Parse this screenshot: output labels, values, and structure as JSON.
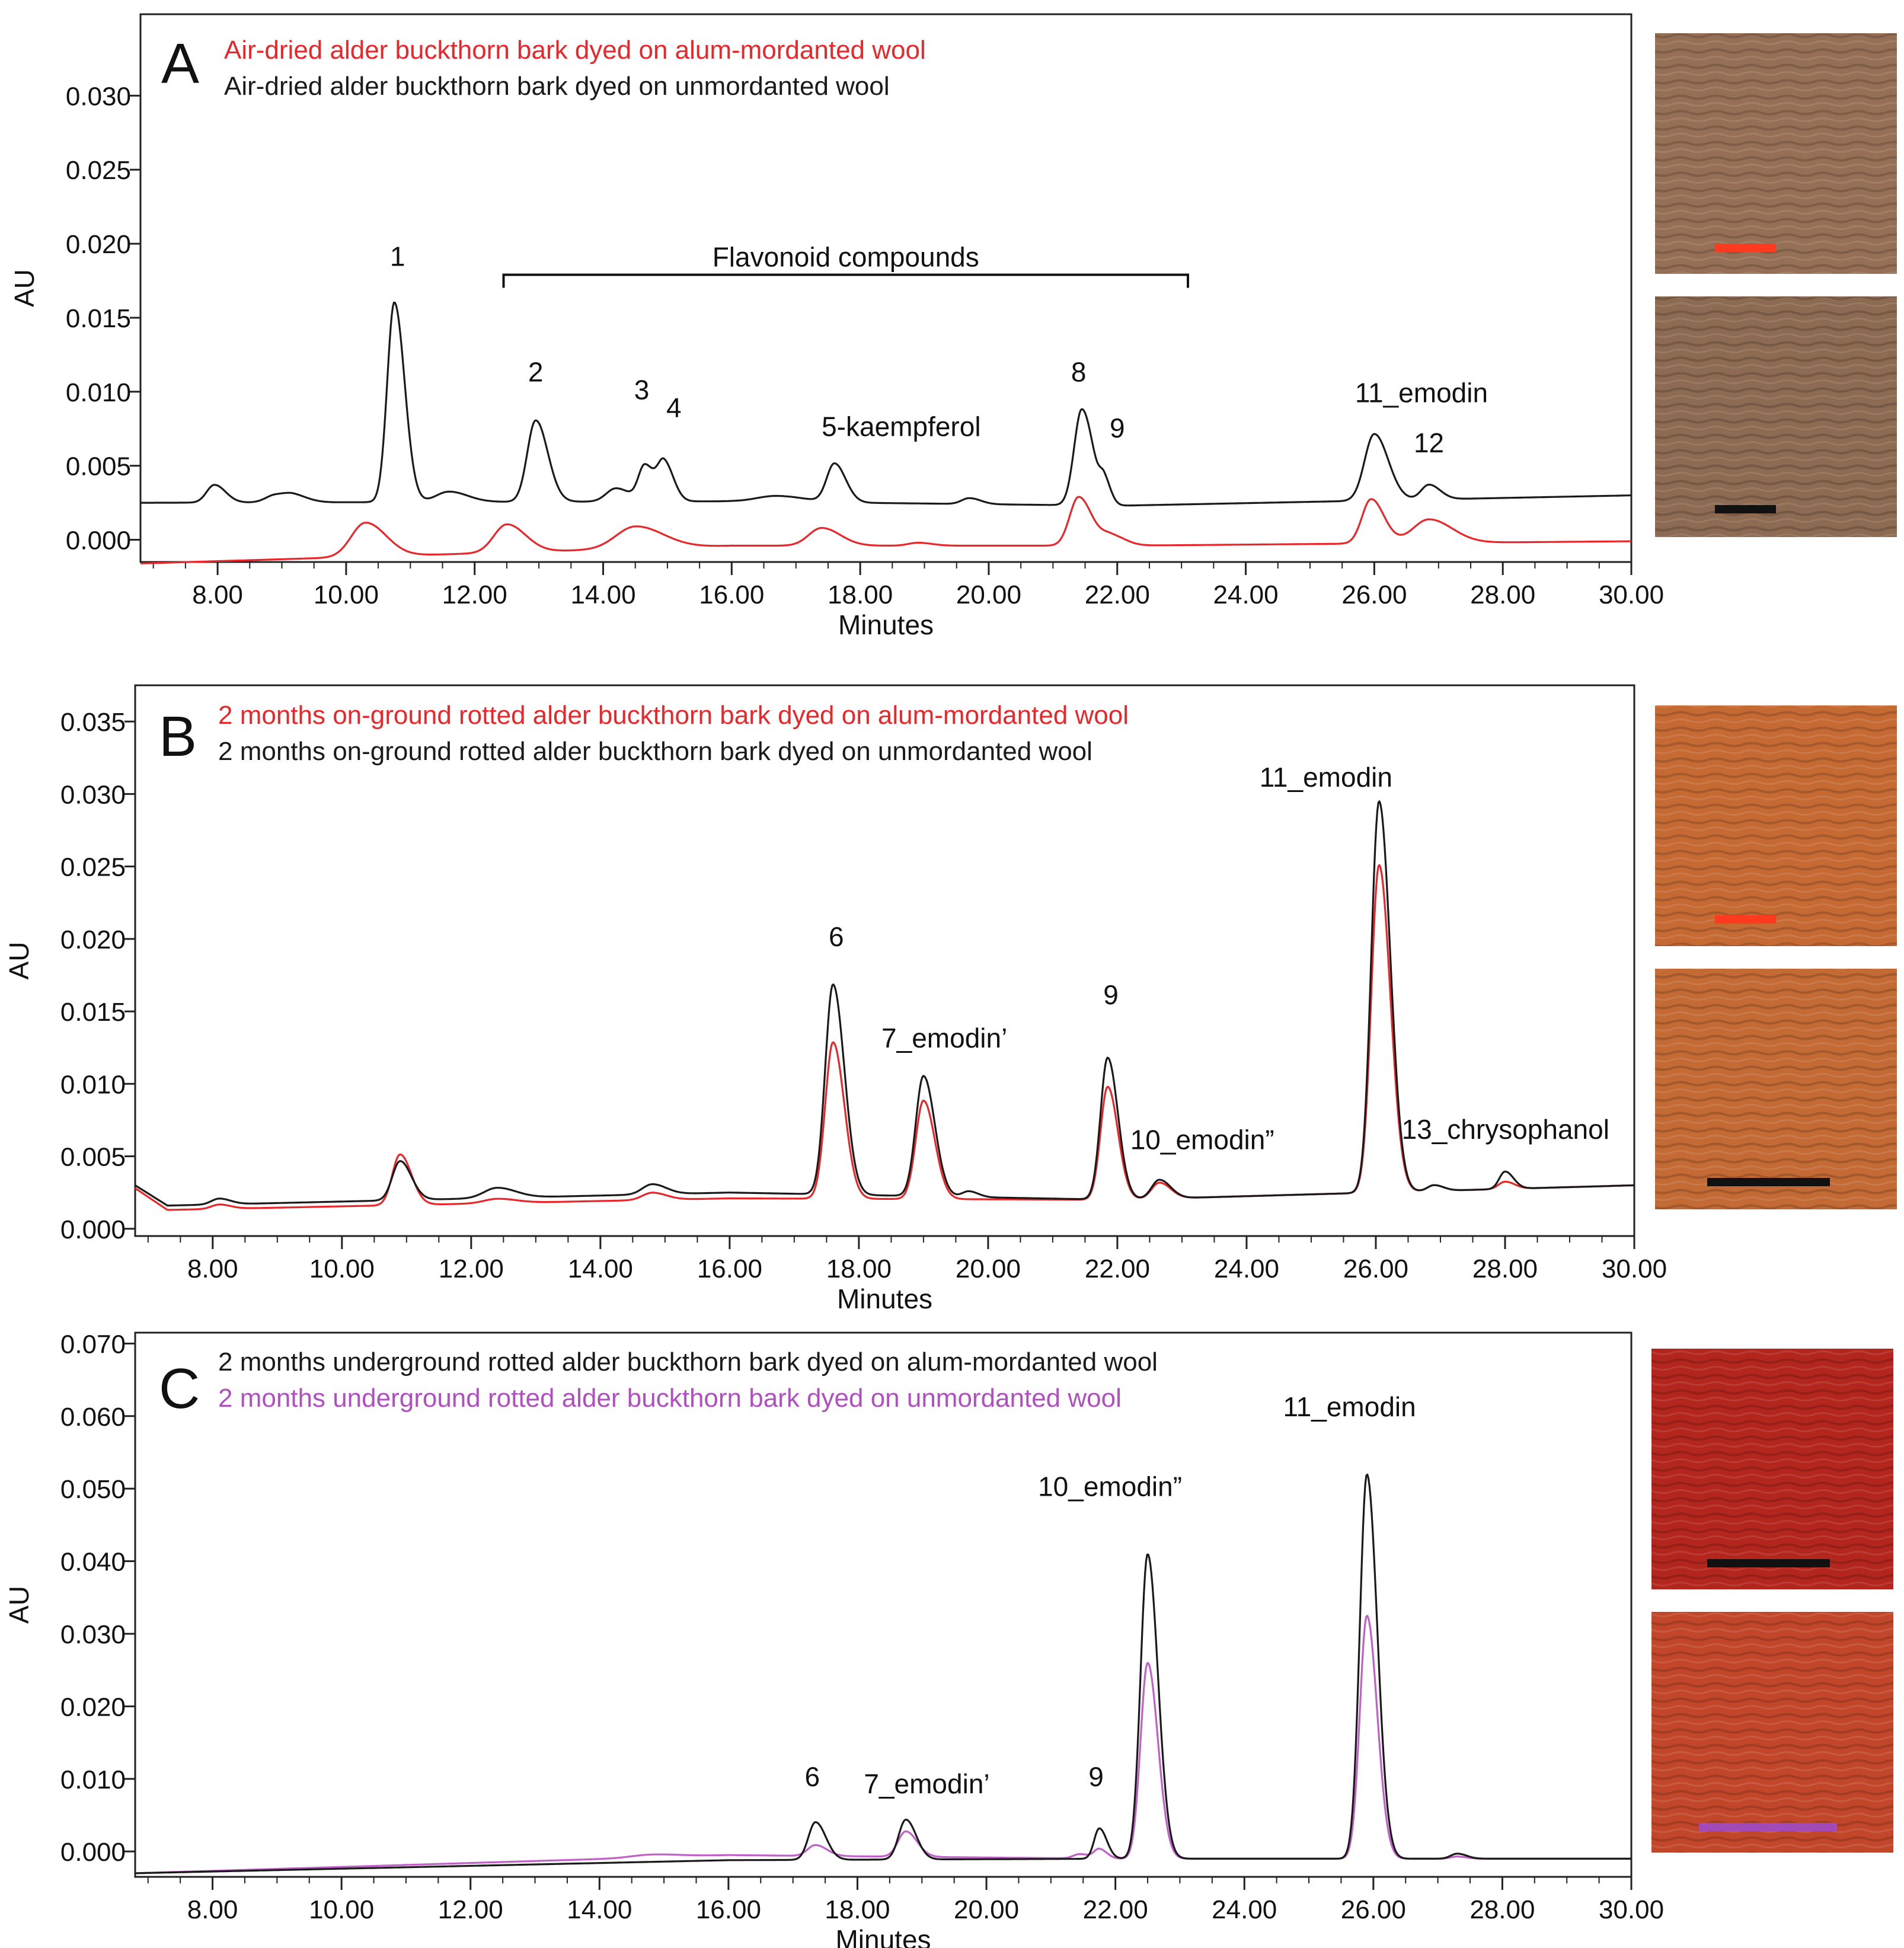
{
  "chart_data": [
    {
      "type": "line",
      "panel": "A",
      "xlabel": "Minutes",
      "ylabel": "AU",
      "xlim": [
        6.8,
        30.0
      ],
      "ylim": [
        -0.0015,
        0.0355
      ],
      "x_ticks": [
        "8.00",
        "10.00",
        "12.00",
        "14.00",
        "16.00",
        "18.00",
        "20.00",
        "22.00",
        "24.00",
        "26.00",
        "28.00",
        "30.00"
      ],
      "y_ticks": [
        "0.000",
        "0.005",
        "0.010",
        "0.015",
        "0.020",
        "0.025",
        "0.030"
      ],
      "legend": [
        {
          "text": "Air-dried alder buckthorn bark dyed on alum-mordanted wool",
          "color": "#e8272a"
        },
        {
          "text": "Air-dried alder buckthorn bark dyed on unmordanted wool",
          "color": "#1a1a1a"
        }
      ],
      "series": [
        {
          "name": "Air-dried alder buckthorn bark dyed on unmordanted wool",
          "color": "#1a1a1a",
          "baseline": [
            [
              6.8,
              0.0025
            ],
            [
              16,
              0.0026
            ],
            [
              22,
              0.0023
            ],
            [
              30,
              0.003
            ]
          ],
          "peaks": [
            [
              7.95,
              0.0012,
              0.12
            ],
            [
              8.9,
              0.0005,
              0.15
            ],
            [
              9.2,
              0.0004,
              0.15
            ],
            [
              10.75,
              0.0135,
              0.11
            ],
            [
              11.6,
              0.0007,
              0.2
            ],
            [
              12.95,
              0.0055,
              0.13
            ],
            [
              14.2,
              0.0009,
              0.15
            ],
            [
              14.65,
              0.0024,
              0.1
            ],
            [
              14.95,
              0.0026,
              0.1
            ],
            [
              16.7,
              0.0004,
              0.3
            ],
            [
              17.6,
              0.0026,
              0.12
            ],
            [
              19.7,
              0.0004,
              0.12
            ],
            [
              21.45,
              0.0065,
              0.12
            ],
            [
              21.8,
              0.0014,
              0.07
            ],
            [
              26.0,
              0.0045,
              0.15
            ],
            [
              26.85,
              0.001,
              0.12
            ]
          ]
        },
        {
          "name": "Air-dried alder buckthorn bark dyed on alum-mordanted wool",
          "color": "#e8272a",
          "baseline": [
            [
              6.8,
              -0.0016
            ],
            [
              16,
              -0.0004
            ],
            [
              22,
              -0.0004
            ],
            [
              30,
              -0.0001
            ]
          ],
          "peaks": [
            [
              10.3,
              0.0023,
              0.22
            ],
            [
              12.5,
              0.0019,
              0.2
            ],
            [
              14.5,
              0.0015,
              0.3
            ],
            [
              17.4,
              0.0012,
              0.2
            ],
            [
              18.9,
              0.0002,
              0.15
            ],
            [
              21.4,
              0.0033,
              0.14
            ],
            [
              21.9,
              0.0007,
              0.15
            ],
            [
              25.95,
              0.003,
              0.14
            ],
            [
              26.85,
              0.0016,
              0.25
            ]
          ]
        }
      ],
      "annotations": [
        {
          "text": "1",
          "x": 10.8,
          "y": 0.0185
        },
        {
          "text": "2",
          "x": 12.95,
          "y": 0.0107
        },
        {
          "text": "3",
          "x": 14.6,
          "y": 0.0095
        },
        {
          "text": "4",
          "x": 15.1,
          "y": 0.0083
        },
        {
          "text": "5-kaempferol",
          "x": 17.4,
          "y": 0.007,
          "anchor": "start"
        },
        {
          "text": "8",
          "x": 21.4,
          "y": 0.0107
        },
        {
          "text": "9",
          "x": 22.0,
          "y": 0.0069
        },
        {
          "text": "11_emodin",
          "x": 25.7,
          "y": 0.0093,
          "anchor": "start"
        },
        {
          "text": "12",
          "x": 26.85,
          "y": 0.0059
        }
      ],
      "bracket": {
        "text": "Flavonoid compounds",
        "x_start": 12.45,
        "x_end": 23.1,
        "y": 0.0179
      }
    },
    {
      "type": "line",
      "panel": "B",
      "xlabel": "Minutes",
      "ylabel": "AU",
      "xlim": [
        6.8,
        30.0
      ],
      "ylim": [
        -0.0005,
        0.0375
      ],
      "x_ticks": [
        "8.00",
        "10.00",
        "12.00",
        "14.00",
        "16.00",
        "18.00",
        "20.00",
        "22.00",
        "24.00",
        "26.00",
        "28.00",
        "30.00"
      ],
      "y_ticks": [
        "0.000",
        "0.005",
        "0.010",
        "0.015",
        "0.020",
        "0.025",
        "0.030",
        "0.035"
      ],
      "legend": [
        {
          "text": "2 months on-ground rotted alder buckthorn bark dyed on alum-mordanted wool",
          "color": "#e8272a"
        },
        {
          "text": "2 months on-ground rotted alder buckthorn bark dyed on unmordanted wool",
          "color": "#1a1a1a"
        }
      ],
      "series": [
        {
          "name": "2 months on-ground rotted alder buckthorn bark dyed on alum-mordanted wool",
          "color": "#e8272a",
          "baseline": [
            [
              6.8,
              0.0028
            ],
            [
              7.3,
              0.0013
            ],
            [
              16,
              0.0021
            ],
            [
              22,
              0.002
            ],
            [
              30,
              0.003
            ]
          ],
          "peaks": [
            [
              8.1,
              0.0003,
              0.12
            ],
            [
              10.9,
              0.0035,
              0.12
            ],
            [
              12.4,
              0.0003,
              0.2
            ],
            [
              14.8,
              0.0005,
              0.15
            ],
            [
              17.6,
              0.0108,
              0.12
            ],
            [
              19.0,
              0.0068,
              0.12
            ],
            [
              21.85,
              0.0078,
              0.11
            ],
            [
              22.65,
              0.0011,
              0.12
            ],
            [
              26.05,
              0.0226,
              0.12
            ],
            [
              26.9,
              0.0004,
              0.1
            ],
            [
              28.0,
              0.0005,
              0.1
            ]
          ]
        },
        {
          "name": "2 months on-ground rotted alder buckthorn bark dyed on unmordanted wool",
          "color": "#1a1a1a",
          "baseline": [
            [
              6.8,
              0.003
            ],
            [
              7.3,
              0.0016
            ],
            [
              16,
              0.0025
            ],
            [
              22,
              0.002
            ],
            [
              30,
              0.003
            ]
          ],
          "peaks": [
            [
              8.1,
              0.0004,
              0.12
            ],
            [
              10.9,
              0.0027,
              0.12
            ],
            [
              12.4,
              0.0007,
              0.2
            ],
            [
              14.8,
              0.0007,
              0.15
            ],
            [
              17.6,
              0.0145,
              0.12
            ],
            [
              19.0,
              0.0083,
              0.12
            ],
            [
              19.7,
              0.0004,
              0.1
            ],
            [
              21.85,
              0.0098,
              0.11
            ],
            [
              22.65,
              0.0013,
              0.12
            ],
            [
              26.05,
              0.027,
              0.12
            ],
            [
              26.9,
              0.0004,
              0.1
            ],
            [
              28.0,
              0.0012,
              0.09
            ]
          ]
        }
      ],
      "annotations": [
        {
          "text": "6",
          "x": 17.65,
          "y": 0.0195
        },
        {
          "text": "7_emodin’",
          "x": 18.35,
          "y": 0.0125,
          "anchor": "start"
        },
        {
          "text": "9",
          "x": 21.9,
          "y": 0.0155
        },
        {
          "text": "10_emodin”",
          "x": 22.2,
          "y": 0.0055,
          "anchor": "start"
        },
        {
          "text": "11_emodin",
          "x": 24.2,
          "y": 0.0305,
          "anchor": "start"
        },
        {
          "text": "13_chrysophanol",
          "x": 26.4,
          "y": 0.0062,
          "anchor": "start"
        }
      ]
    },
    {
      "type": "line",
      "panel": "C",
      "xlabel": "Minutes",
      "ylabel": "AU",
      "xlim": [
        6.8,
        30.0
      ],
      "ylim": [
        -0.0035,
        0.0715
      ],
      "x_ticks": [
        "8.00",
        "10.00",
        "12.00",
        "14.00",
        "16.00",
        "18.00",
        "20.00",
        "22.00",
        "24.00",
        "26.00",
        "28.00",
        "30.00"
      ],
      "y_ticks": [
        "0.000",
        "0.010",
        "0.020",
        "0.030",
        "0.040",
        "0.050",
        "0.060",
        "0.070"
      ],
      "legend": [
        {
          "text": "2 months underground rotted alder buckthorn bark dyed on alum-mordanted wool",
          "color": "#1a1a1a"
        },
        {
          "text": "2 months underground rotted alder buckthorn bark dyed on unmordanted wool",
          "color": "#b050c0"
        }
      ],
      "series": [
        {
          "name": "2 months underground rotted alder buckthorn bark dyed on unmordanted wool",
          "color": "#c060c8",
          "baseline": [
            [
              6.8,
              -0.003
            ],
            [
              16,
              -0.0005
            ],
            [
              22,
              -0.001
            ],
            [
              30,
              -0.001
            ]
          ],
          "peaks": [
            [
              14.8,
              0.0004,
              0.3
            ],
            [
              17.35,
              0.0015,
              0.12
            ],
            [
              18.75,
              0.0035,
              0.12
            ],
            [
              21.45,
              0.0006,
              0.1
            ],
            [
              21.75,
              0.0013,
              0.08
            ],
            [
              22.5,
              0.027,
              0.11
            ],
            [
              25.9,
              0.0335,
              0.11
            ],
            [
              27.3,
              0.0003,
              0.1
            ]
          ]
        },
        {
          "name": "2 months underground rotted alder buckthorn bark dyed on alum-mordanted wool",
          "color": "#1a1a1a",
          "baseline": [
            [
              6.8,
              -0.003
            ],
            [
              16,
              -0.0012
            ],
            [
              22,
              -0.001
            ],
            [
              30,
              -0.001
            ]
          ],
          "peaks": [
            [
              17.35,
              0.0052,
              0.11
            ],
            [
              18.75,
              0.0055,
              0.11
            ],
            [
              21.75,
              0.0042,
              0.08
            ],
            [
              22.5,
              0.042,
              0.11
            ],
            [
              25.9,
              0.053,
              0.11
            ],
            [
              27.3,
              0.0007,
              0.1
            ]
          ]
        }
      ],
      "annotations": [
        {
          "text": "6",
          "x": 17.3,
          "y": 0.009
        },
        {
          "text": "7_emodin’",
          "x": 18.1,
          "y": 0.008,
          "anchor": "start"
        },
        {
          "text": "9",
          "x": 21.7,
          "y": 0.009
        },
        {
          "text": "10_emodin”",
          "x": 20.8,
          "y": 0.049,
          "anchor": "start"
        },
        {
          "text": "11_emodin",
          "x": 24.6,
          "y": 0.06,
          "anchor": "start"
        }
      ]
    }
  ],
  "swatches": [
    {
      "panel": "A",
      "fabric": "#967056",
      "bar_color": "#ff3a1f"
    },
    {
      "panel": "A",
      "fabric": "#8d6a52",
      "bar_color": "#111111"
    },
    {
      "panel": "B",
      "fabric": "#c66a34",
      "bar_color": "#ff3a1f"
    },
    {
      "panel": "B",
      "fabric": "#c36a35",
      "bar_color": "#111111"
    },
    {
      "panel": "C",
      "fabric": "#b3261d",
      "bar_color": "#111111"
    },
    {
      "panel": "C",
      "fabric": "#c2472a",
      "bar_color": "#a14ab8"
    }
  ]
}
